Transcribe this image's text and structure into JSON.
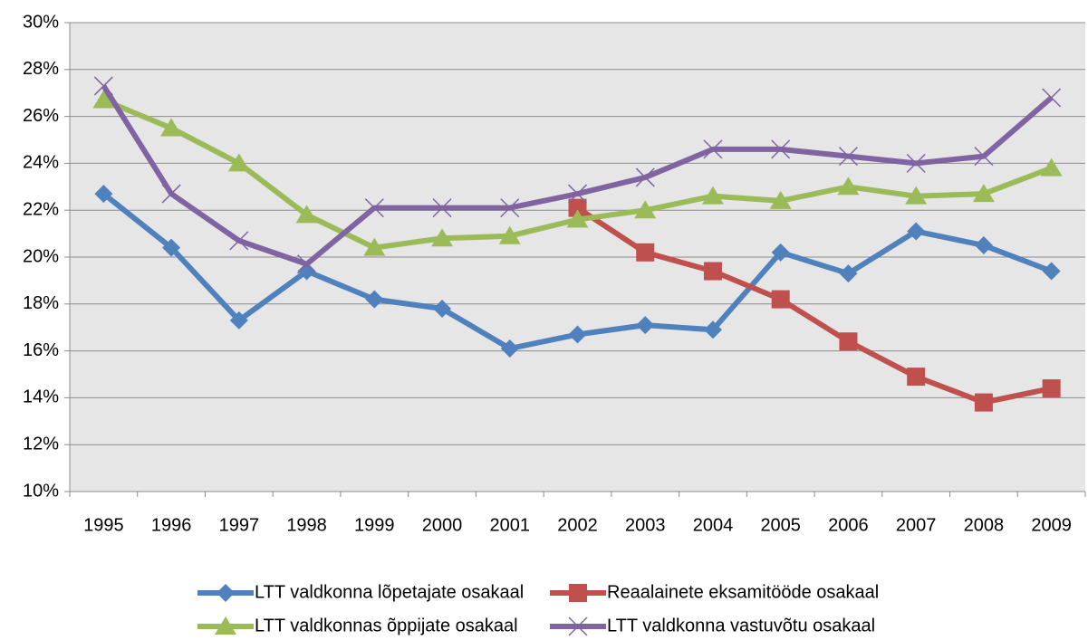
{
  "chart_data": {
    "type": "line",
    "categories": [
      "1995",
      "1996",
      "1997",
      "1998",
      "1999",
      "2000",
      "2001",
      "2002",
      "2003",
      "2004",
      "2005",
      "2006",
      "2007",
      "2008",
      "2009"
    ],
    "series": [
      {
        "name": "LTT valdkonna lõpetajate osakaal",
        "color": "#4f81bd",
        "marker": "diamond",
        "values": [
          22.7,
          20.4,
          17.3,
          19.4,
          18.2,
          17.8,
          16.1,
          16.7,
          17.1,
          16.9,
          20.2,
          19.3,
          21.1,
          20.5,
          19.4
        ]
      },
      {
        "name": "Reaalainete eksamitööde osakaal",
        "color": "#c0504d",
        "marker": "square",
        "values": [
          null,
          null,
          null,
          null,
          null,
          null,
          null,
          22.1,
          20.2,
          19.4,
          18.2,
          16.4,
          14.9,
          13.8,
          14.4
        ]
      },
      {
        "name": "LTT valdkonnas õppijate osakaal",
        "color": "#9bbb59",
        "marker": "triangle",
        "values": [
          26.7,
          25.5,
          24.0,
          21.8,
          20.4,
          20.8,
          20.9,
          21.6,
          22.0,
          22.6,
          22.4,
          23.0,
          22.6,
          22.7,
          23.8
        ]
      },
      {
        "name": "LTT valdkonna vastuvõtu osakaal",
        "color": "#8064a2",
        "marker": "x",
        "values": [
          27.3,
          22.7,
          20.7,
          19.7,
          22.1,
          22.1,
          22.1,
          22.7,
          23.4,
          24.6,
          24.6,
          24.3,
          24.0,
          24.3,
          26.8
        ]
      }
    ],
    "ylim": [
      10,
      30
    ],
    "yticks": [
      {
        "value": 10,
        "label": "10%"
      },
      {
        "value": 12,
        "label": "12%"
      },
      {
        "value": 14,
        "label": "14%"
      },
      {
        "value": 16,
        "label": "16%"
      },
      {
        "value": 18,
        "label": "18%"
      },
      {
        "value": 20,
        "label": "20%"
      },
      {
        "value": 22,
        "label": "22%"
      },
      {
        "value": 24,
        "label": "24%"
      },
      {
        "value": 26,
        "label": "26%"
      },
      {
        "value": 28,
        "label": "28%"
      },
      {
        "value": 30,
        "label": "30%"
      }
    ],
    "grid": true,
    "legend": "bottom"
  }
}
